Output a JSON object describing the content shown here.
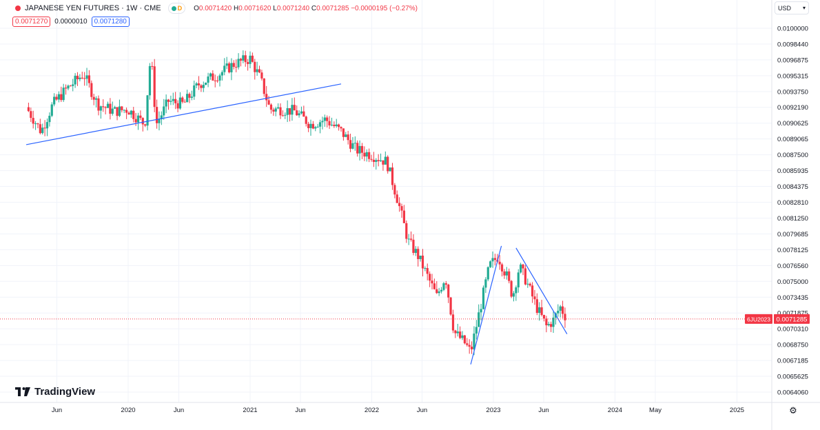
{
  "header": {
    "title": "JAPANESE YEN FUTURES · 1W · CME",
    "status_letter": "D",
    "ohlc": {
      "open_label": "O",
      "open": "0.0071420",
      "high_label": "H",
      "high": "0.0071620",
      "low_label": "L",
      "low": "0.0071240",
      "close_label": "C",
      "close": "0.0071285",
      "change": "−0.0000195 (−0.27%)"
    },
    "bid": "0.0071270",
    "spread": "0.0000010",
    "ask": "0.0071280"
  },
  "currency_selector": {
    "value": "USD"
  },
  "branding": {
    "logo_text": "TradingView"
  },
  "colors": {
    "up": "#22ab94",
    "down": "#f23645",
    "trendline": "#2962ff",
    "grid": "#f0f3fa"
  },
  "chart_data": {
    "type": "candlestick",
    "symbol": "JAPANESE YEN FUTURES",
    "interval": "1W",
    "exchange": "CME",
    "y_axis_ticks": [
      "0.0100000",
      "0.0098440",
      "0.0096875",
      "0.0095315",
      "0.0093750",
      "0.0092190",
      "0.0090625",
      "0.0089065",
      "0.0087500",
      "0.0085935",
      "0.0084375",
      "0.0082810",
      "0.0081250",
      "0.0079685",
      "0.0078125",
      "0.0076560",
      "0.0075000",
      "0.0073435",
      "0.0071875",
      "0.0070310",
      "0.0068750",
      "0.0067185",
      "0.0065625",
      "0.0064060"
    ],
    "x_axis_ticks": [
      {
        "label": "Jun",
        "date": "2019-06-01"
      },
      {
        "label": "2020",
        "date": "2020-01-01"
      },
      {
        "label": "Jun",
        "date": "2020-06-01"
      },
      {
        "label": "2021",
        "date": "2021-01-01"
      },
      {
        "label": "Jun",
        "date": "2021-06-01"
      },
      {
        "label": "2022",
        "date": "2022-01-01"
      },
      {
        "label": "Jun",
        "date": "2022-06-01"
      },
      {
        "label": "2023",
        "date": "2023-01-01"
      },
      {
        "label": "Jun",
        "date": "2023-06-01"
      },
      {
        "label": "2024",
        "date": "2024-01-01"
      },
      {
        "label": "May",
        "date": "2024-05-01"
      },
      {
        "label": "2025",
        "date": "2025-01-01"
      }
    ],
    "current_price": {
      "contract": "6JU2023",
      "value": 0.0071285,
      "label": "0.0071285"
    },
    "close_path": [
      [
        "2019-03-01",
        0.00922
      ],
      [
        "2019-04-15",
        0.00898
      ],
      [
        "2019-05-20",
        0.00925
      ],
      [
        "2019-06-30",
        0.0094
      ],
      [
        "2019-08-20",
        0.00955
      ],
      [
        "2019-10-01",
        0.00925
      ],
      [
        "2019-11-20",
        0.00918
      ],
      [
        "2019-12-31",
        0.0092
      ],
      [
        "2020-02-20",
        0.00905
      ],
      [
        "2020-03-09",
        0.00975
      ],
      [
        "2020-03-25",
        0.00905
      ],
      [
        "2020-05-01",
        0.00928
      ],
      [
        "2020-06-15",
        0.00925
      ],
      [
        "2020-08-01",
        0.00945
      ],
      [
        "2020-10-01",
        0.00955
      ],
      [
        "2020-11-15",
        0.00965
      ],
      [
        "2021-01-01",
        0.0097
      ],
      [
        "2021-02-01",
        0.0095
      ],
      [
        "2021-03-01",
        0.0092
      ],
      [
        "2021-04-01",
        0.0092
      ],
      [
        "2021-05-15",
        0.00918
      ],
      [
        "2021-07-01",
        0.00905
      ],
      [
        "2021-08-15",
        0.0091
      ],
      [
        "2021-10-01",
        0.00898
      ],
      [
        "2021-11-15",
        0.0088
      ],
      [
        "2021-12-31",
        0.00875
      ],
      [
        "2022-02-15",
        0.00868
      ],
      [
        "2022-03-20",
        0.0083
      ],
      [
        "2022-04-20",
        0.0079
      ],
      [
        "2022-05-20",
        0.00775
      ],
      [
        "2022-07-15",
        0.00735
      ],
      [
        "2022-08-10",
        0.00755
      ],
      [
        "2022-09-05",
        0.007
      ],
      [
        "2022-10-05",
        0.0069
      ],
      [
        "2022-10-25",
        0.0068
      ],
      [
        "2022-11-20",
        0.0072
      ],
      [
        "2022-12-20",
        0.00765
      ],
      [
        "2023-01-15",
        0.00775
      ],
      [
        "2023-02-10",
        0.00755
      ],
      [
        "2023-02-28",
        0.00735
      ],
      [
        "2023-03-20",
        0.00765
      ],
      [
        "2023-04-10",
        0.0075
      ],
      [
        "2023-05-10",
        0.00725
      ],
      [
        "2023-06-10",
        0.00705
      ],
      [
        "2023-07-01",
        0.00712
      ],
      [
        "2023-07-20",
        0.00725
      ],
      [
        "2023-08-10",
        0.0071285
      ]
    ],
    "trendlines": [
      {
        "start": [
          "2019-03-01",
          0.00885
        ],
        "end": [
          "2021-10-01",
          0.00945
        ],
        "color": "#2962ff"
      },
      {
        "start": [
          "2022-10-25",
          0.00668
        ],
        "end": [
          "2023-01-25",
          0.00785
        ],
        "color": "#2962ff"
      },
      {
        "start": [
          "2023-03-10",
          0.00783
        ],
        "end": [
          "2023-08-10",
          0.00698
        ],
        "color": "#2962ff"
      }
    ],
    "grid": true,
    "price_scale": "right"
  }
}
